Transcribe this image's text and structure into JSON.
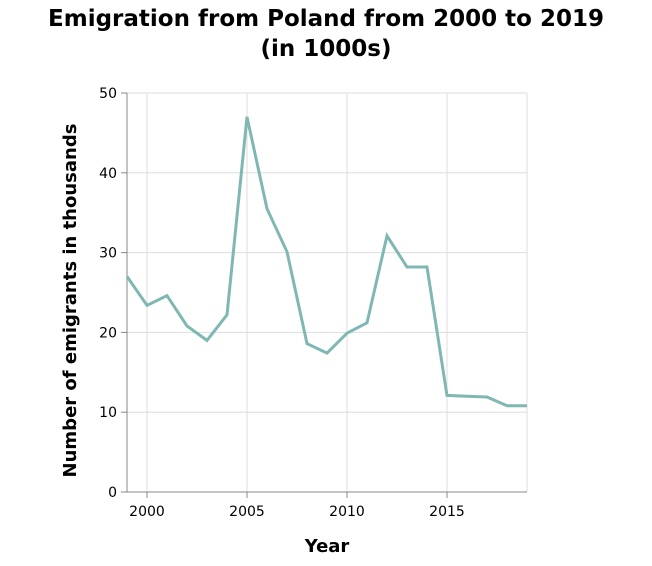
{
  "chart_data": {
    "type": "line",
    "title_line1": "Emigration from Poland from 2000 to 2019",
    "title_line2": "(in 1000s)",
    "xlabel": "Year",
    "ylabel": "Number of emigrants in thousands",
    "xlim": [
      1999,
      2019
    ],
    "ylim": [
      0,
      50
    ],
    "x_ticks": [
      2000,
      2005,
      2010,
      2015
    ],
    "y_ticks": [
      0,
      10,
      20,
      30,
      40,
      50
    ],
    "grid": true,
    "line_color": "#7fb8b3",
    "series": [
      {
        "x": [
          1999,
          2000,
          2001,
          2002,
          2003,
          2004,
          2005,
          2006,
          2007,
          2008,
          2009,
          2010,
          2011,
          2012,
          2013,
          2014,
          2015,
          2016,
          2017,
          2018,
          2019
        ],
        "y": [
          27.0,
          23.4,
          24.6,
          20.8,
          19.0,
          22.2,
          47.0,
          35.5,
          30.1,
          18.6,
          17.4,
          19.9,
          21.2,
          32.1,
          28.2,
          28.2,
          12.1,
          12.0,
          11.9,
          10.8,
          10.8
        ]
      }
    ]
  }
}
